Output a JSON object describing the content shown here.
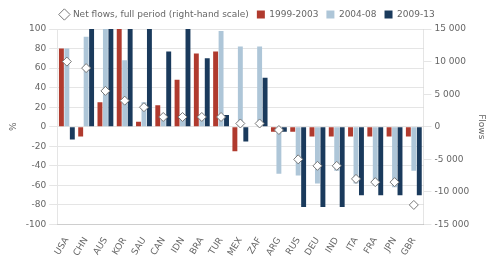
{
  "chart_data": {
    "type": "bar",
    "categories": [
      "USA",
      "CHN",
      "AUS",
      "KOR",
      "SAU",
      "CAN",
      "IDN",
      "BRA",
      "TUR",
      "MEX",
      "ZAF",
      "ARG",
      "RUS",
      "DEU",
      "IND",
      "ITA",
      "FRA",
      "JPN",
      "GBR"
    ],
    "series": [
      {
        "name": "1999-2003",
        "color": "#b03a2e",
        "values": [
          80,
          -10,
          25,
          100,
          5,
          22,
          48,
          75,
          77,
          -25,
          0,
          -5,
          -5,
          -10,
          -10,
          -10,
          -10,
          -10,
          -10
        ]
      },
      {
        "name": "2004-08",
        "color": "#aec6d8",
        "values": [
          80,
          92,
          100,
          68,
          25,
          10,
          8,
          10,
          98,
          82,
          82,
          -48,
          -50,
          -58,
          -45,
          -58,
          -60,
          -62,
          -45
        ]
      },
      {
        "name": "2009-13",
        "color": "#1a3a5c",
        "values": [
          -13,
          100,
          100,
          100,
          100,
          77,
          100,
          70,
          12,
          -15,
          50,
          -5,
          -82,
          -82,
          -82,
          -70,
          -70,
          -70,
          -70
        ]
      },
      {
        "name": "Net flows, full period (right-hand scale)",
        "type": "scatter",
        "marker": "diamond",
        "color": "#ffffff",
        "axis": "y2",
        "values": [
          10000,
          9000,
          5500,
          4000,
          3000,
          1500,
          1500,
          1500,
          1500,
          500,
          500,
          -500,
          -5000,
          -6000,
          -6000,
          -8000,
          -8500,
          -8500,
          -12000
        ]
      }
    ],
    "ylabel": "%",
    "y2label": "Flows",
    "ylim": [
      -100,
      100
    ],
    "yticks": [
      -100,
      -80,
      -60,
      -40,
      -20,
      0,
      20,
      40,
      60,
      80,
      100
    ],
    "y2lim": [
      -15000,
      15000
    ],
    "y2ticks": [
      {
        "value": -15000,
        "label": "-15 000"
      },
      {
        "value": -10000,
        "label": "-10 000"
      },
      {
        "value": -5000,
        "label": "-5 000"
      },
      0,
      {
        "value": 5000,
        "label": "5 000"
      },
      {
        "value": 10000,
        "label": "10 000"
      },
      {
        "value": 15000,
        "label": "15 000"
      }
    ],
    "grid": true,
    "legend": "top"
  }
}
